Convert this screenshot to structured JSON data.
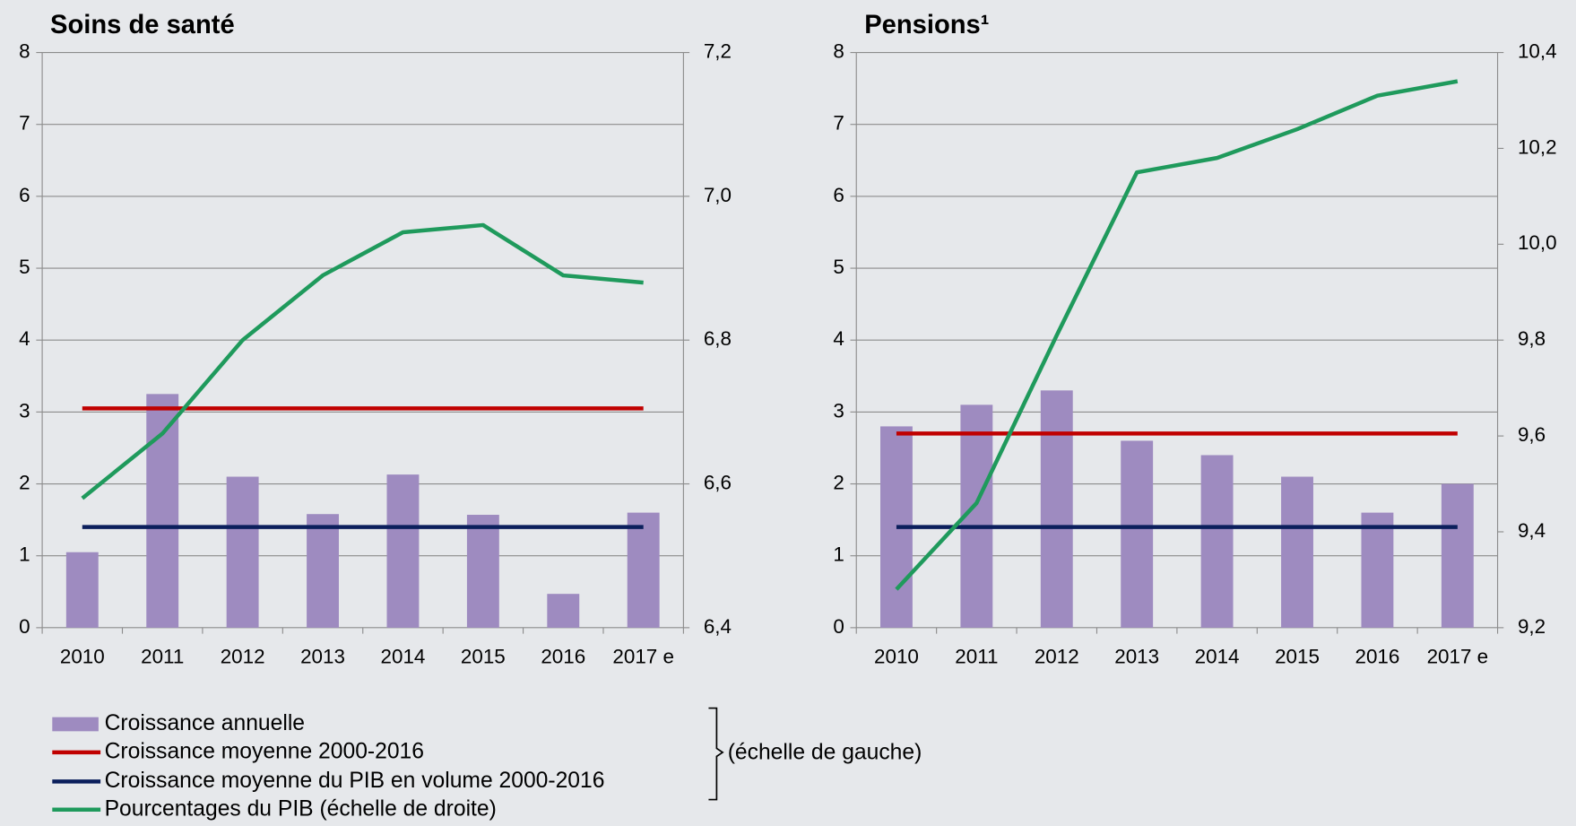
{
  "chart_data": [
    {
      "type": "combo",
      "title": "Soins de santé",
      "categories": [
        "2010",
        "2011",
        "2012",
        "2013",
        "2014",
        "2015",
        "2016",
        "2017 e"
      ],
      "series": [
        {
          "name": "Croissance annuelle",
          "type": "bar",
          "color": "#9e8bc0",
          "values": [
            1.05,
            3.25,
            2.1,
            1.58,
            2.13,
            1.57,
            0.47,
            1.6
          ]
        },
        {
          "name": "Croissance moyenne 2000-2016",
          "type": "line",
          "color": "#c00000",
          "values": [
            3.05,
            3.05,
            3.05,
            3.05,
            3.05,
            3.05,
            3.05,
            3.05
          ]
        },
        {
          "name": "Croissance moyenne du PIB en volume 2000-2016",
          "type": "line",
          "color": "#0b1f5c",
          "values": [
            1.4,
            1.4,
            1.4,
            1.4,
            1.4,
            1.4,
            1.4,
            1.4
          ]
        },
        {
          "name": "Pourcentages du PIB (échelle de droite)",
          "type": "line",
          "axis": "y2",
          "color": "#1f9a5c",
          "values": [
            6.58,
            6.67,
            6.8,
            6.89,
            6.95,
            6.96,
            6.89,
            6.88
          ]
        }
      ],
      "legend_note": "(échelle de gauche)",
      "ylim": [
        0,
        8
      ],
      "yticks": [
        0,
        1,
        2,
        3,
        4,
        5,
        6,
        7,
        8
      ],
      "y2lim": [
        6.4,
        7.2
      ],
      "y2ticks": [
        {
          "value": 6.4,
          "label": "6,4"
        },
        {
          "value": 6.6,
          "label": "6,6"
        },
        {
          "value": 6.8,
          "label": "6,8"
        },
        {
          "value": 7.0,
          "label": "7,0"
        },
        {
          "value": 7.2,
          "label": "7,2"
        }
      ],
      "grid": true
    },
    {
      "type": "combo",
      "title": "Pensions¹",
      "categories": [
        "2010",
        "2011",
        "2012",
        "2013",
        "2014",
        "2015",
        "2016",
        "2017 e"
      ],
      "series": [
        {
          "type": "bar",
          "color": "#9e8bc0",
          "values": [
            2.8,
            3.1,
            3.3,
            2.6,
            2.4,
            2.1,
            1.6,
            2.0
          ]
        },
        {
          "type": "line",
          "color": "#c00000",
          "values": [
            2.7,
            2.7,
            2.7,
            2.7,
            2.7,
            2.7,
            2.7,
            2.7
          ]
        },
        {
          "type": "line",
          "color": "#0b1f5c",
          "values": [
            1.4,
            1.4,
            1.4,
            1.4,
            1.4,
            1.4,
            1.4,
            1.4
          ]
        },
        {
          "type": "line",
          "axis": "y2",
          "color": "#1f9a5c",
          "values": [
            9.28,
            9.46,
            9.81,
            10.15,
            10.18,
            10.24,
            10.31,
            10.34
          ]
        }
      ],
      "ylim": [
        0,
        8
      ],
      "yticks": [
        0,
        1,
        2,
        3,
        4,
        5,
        6,
        7,
        8
      ],
      "y2lim": [
        9.2,
        10.4
      ],
      "y2ticks": [
        {
          "value": 9.2,
          "label": "9,2"
        },
        {
          "value": 9.4,
          "label": "9,4"
        },
        {
          "value": 9.6,
          "label": "9,6"
        },
        {
          "value": 9.8,
          "label": "9,8"
        },
        {
          "value": 10.0,
          "label": "10,0"
        },
        {
          "value": 10.2,
          "label": "10,2"
        },
        {
          "value": 10.4,
          "label": "10,4"
        }
      ],
      "grid": true
    }
  ]
}
